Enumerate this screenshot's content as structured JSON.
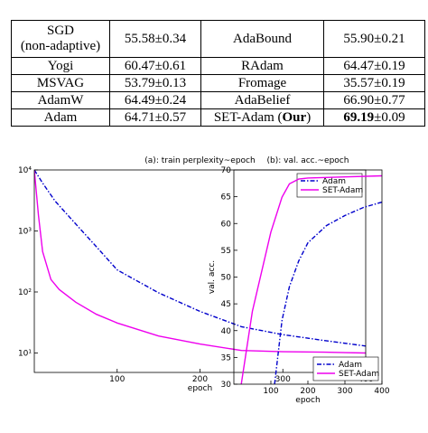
{
  "table": {
    "rows": [
      [
        [
          "SGD",
          "(non-adaptive)"
        ],
        "55.58±0.34",
        "AdaBound",
        "55.90±0.21"
      ],
      [
        "Yogi",
        "60.47±0.61",
        "RAdam",
        "64.47±0.19"
      ],
      [
        "MSVAG",
        "53.79±0.13",
        "Fromage",
        "35.57±0.19"
      ],
      [
        "AdamW",
        "64.49±0.24",
        "AdaBelief",
        "66.90±0.77"
      ],
      [
        "Adam",
        "64.71±0.57",
        [
          "SET-Adam (",
          "Our",
          ")"
        ],
        [
          "69.19",
          "±0.09"
        ]
      ]
    ]
  },
  "chart_data": [
    {
      "type": "line",
      "title": "(a): train perplexity~epoch",
      "xlabel": "epoch",
      "log_y": true,
      "legend": "upper right",
      "xlim": [
        0,
        400
      ],
      "xticks": [
        100,
        200,
        300,
        400
      ],
      "ylim": [
        4.8,
        10000
      ],
      "yticks": [
        {
          "value": 10,
          "label": "10¹"
        },
        {
          "value": 100,
          "label": "10²"
        },
        {
          "value": 1000,
          "label": "10³"
        },
        {
          "value": 10000,
          "label": "10⁴"
        }
      ],
      "series": [
        {
          "name": "Adam",
          "color": "#0000cc",
          "dash": true,
          "x": [
            0,
            10,
            25,
            50,
            75,
            100,
            150,
            200,
            250,
            300,
            350,
            400
          ],
          "values": [
            10000,
            6100,
            3100,
            1300,
            550,
            230,
            97,
            48,
            27,
            20,
            16,
            13
          ]
        },
        {
          "name": "SET-Adam",
          "color": "#ee00ee",
          "dash": false,
          "x": [
            0,
            5,
            10,
            20,
            30,
            50,
            75,
            100,
            150,
            200,
            250,
            300,
            350,
            400
          ],
          "values": [
            10000,
            1800,
            460,
            160,
            110,
            68,
            43,
            31,
            19,
            14,
            11,
            10.5,
            10.3,
            10
          ]
        }
      ]
    },
    {
      "type": "line",
      "title": "(b): val. acc.~epoch",
      "xlabel": "epoch",
      "ylabel": "val. acc.",
      "log_y": false,
      "legend": "lower right",
      "xlim": [
        0,
        400
      ],
      "xticks": [
        100,
        200,
        300,
        400
      ],
      "ylim": [
        30,
        70
      ],
      "yticks": [
        30,
        35,
        40,
        45,
        50,
        55,
        60,
        65,
        70
      ],
      "series": [
        {
          "name": "Adam",
          "color": "#0000cc",
          "dash": true,
          "x": [
            110,
            130,
            150,
            175,
            200,
            250,
            300,
            350,
            400
          ],
          "values": [
            30,
            41.9,
            48.2,
            53,
            56.4,
            59.6,
            61.5,
            63,
            64
          ]
        },
        {
          "name": "SET-Adam",
          "color": "#ee00ee",
          "dash": false,
          "x": [
            20,
            50,
            100,
            130,
            150,
            175,
            200,
            300,
            400
          ],
          "values": [
            30,
            43.6,
            58.4,
            64.9,
            67.4,
            68.3,
            68.5,
            68.7,
            68.9
          ]
        }
      ]
    }
  ]
}
